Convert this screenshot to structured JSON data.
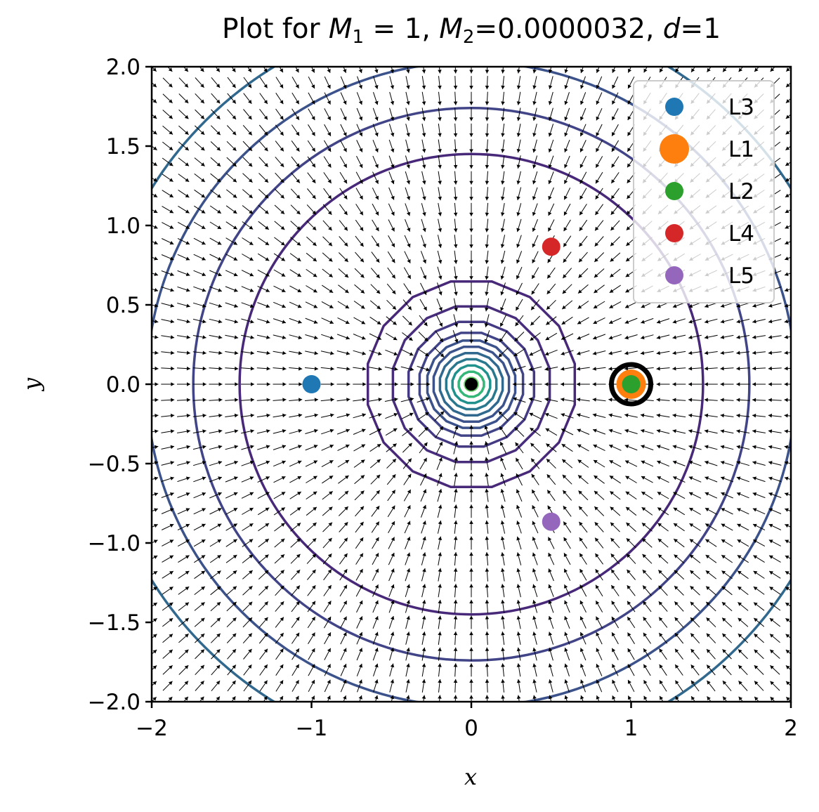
{
  "title": {
    "prefix": "Plot for ",
    "m1_symbol": "M",
    "m1_sub": "1",
    "m1_value": " = 1, ",
    "m2_symbol": "M",
    "m2_sub": "2",
    "m2_value": "=0.0000032, ",
    "d_symbol": "d",
    "d_value": "=1"
  },
  "chart_data": {
    "type": "scatter",
    "title": "Plot for M1 = 1, M2=0.0000032, d=1",
    "xlabel": "x",
    "ylabel": "y",
    "xlim": [
      -2,
      2
    ],
    "ylim": [
      -2,
      2
    ],
    "x_ticks": [
      {
        "value": -2,
        "label": "−2"
      },
      {
        "value": -1,
        "label": "−1"
      },
      {
        "value": 0,
        "label": "0"
      },
      {
        "value": 1,
        "label": "1"
      },
      {
        "value": 2,
        "label": "2"
      }
    ],
    "y_ticks": [
      {
        "value": 2.0,
        "label": "2.0"
      },
      {
        "value": 1.5,
        "label": "1.5"
      },
      {
        "value": 1.0,
        "label": "1.0"
      },
      {
        "value": 0.5,
        "label": "0.5"
      },
      {
        "value": 0.0,
        "label": "0.0"
      },
      {
        "value": -0.5,
        "label": "−0.5"
      },
      {
        "value": -1.0,
        "label": "−1.0"
      },
      {
        "value": -1.5,
        "label": "−1.5"
      },
      {
        "value": -2.0,
        "label": "−2.0"
      }
    ],
    "series": [
      {
        "name": "L3",
        "x": -1.0,
        "y": 0.0,
        "color": "#1f77b4",
        "size": "normal"
      },
      {
        "name": "L1",
        "x": 1.0,
        "y": 0.0,
        "color": "#ff7f0e",
        "size": "large"
      },
      {
        "name": "L2",
        "x": 1.0,
        "y": 0.0,
        "color": "#2ca02c",
        "size": "normal"
      },
      {
        "name": "L4",
        "x": 0.5,
        "y": 0.866,
        "color": "#d62728",
        "size": "normal"
      },
      {
        "name": "L5",
        "x": 0.5,
        "y": -0.866,
        "color": "#9467bd",
        "size": "normal"
      }
    ],
    "bodies": [
      {
        "role": "primary",
        "x": 0.0,
        "y": 0.0,
        "color": "#000000"
      },
      {
        "role": "secondary",
        "x": 1.0,
        "y": 0.0,
        "color": "#000000"
      }
    ],
    "contours": {
      "colormap": "viridis",
      "radii": [
        0.04,
        0.08,
        0.12,
        0.16,
        0.2,
        0.24,
        0.28,
        0.33,
        0.4,
        0.5,
        0.66,
        1.45,
        1.74,
        2.03,
        2.35
      ],
      "colors": [
        "#5ec962",
        "#35b779",
        "#21918c",
        "#2a788e",
        "#31688e",
        "#3b528b",
        "#3b528b",
        "#414487",
        "#443983",
        "#472d7b",
        "#482878",
        "#482878",
        "#414487",
        "#3b528b",
        "#31688e"
      ]
    },
    "vector_field": {
      "type": "quiver",
      "direction": "radially inward toward the primary",
      "grid_step": 0.1,
      "color": "#000000"
    },
    "legend": {
      "position": "top-right",
      "entries": [
        "L3",
        "L1",
        "L2",
        "L4",
        "L5"
      ]
    },
    "grid": false
  }
}
